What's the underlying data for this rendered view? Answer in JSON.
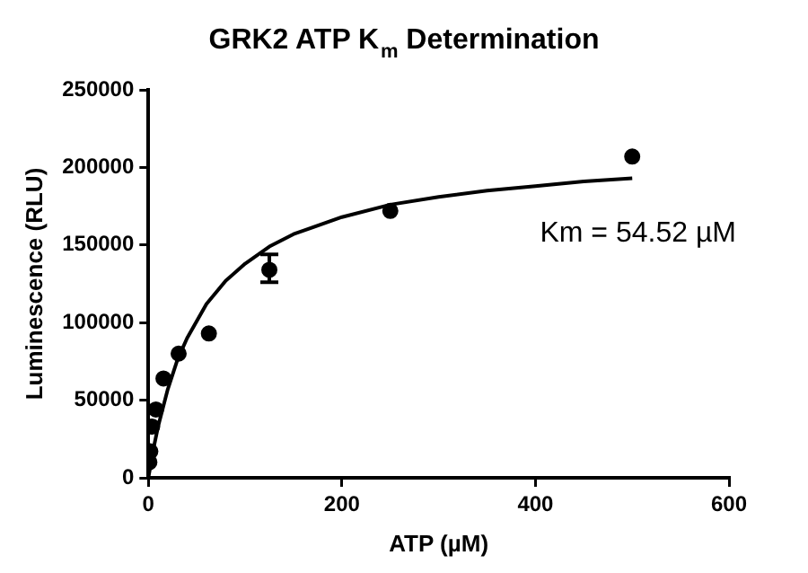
{
  "chart_data": {
    "type": "scatter",
    "title": "GRK2 ATP K$_{m}$ Determination",
    "xlabel": "ATP (µM)",
    "ylabel": "Luminescence (RLU)",
    "xlim": [
      0,
      600
    ],
    "xticks": [
      0,
      200,
      400,
      600
    ],
    "ylim": [
      0,
      250000
    ],
    "yticks": [
      0,
      50000,
      100000,
      150000,
      200000,
      250000
    ],
    "grid": false,
    "legend": false,
    "marker": "circle",
    "annotations": [
      "Km = 54.52 µM"
    ],
    "series": [
      {
        "type": "scatter",
        "color": "#000000",
        "x": [
          1,
          2,
          3.9,
          7.8,
          15.6,
          31.25,
          62.5,
          125,
          250,
          500
        ],
        "values": [
          10000,
          17000,
          33000,
          44000,
          64000,
          80000,
          93000,
          134000,
          172000,
          207000
        ],
        "errors": [
          null,
          null,
          null,
          null,
          null,
          null,
          null,
          [
            126000,
            144000
          ],
          null,
          null
        ]
      },
      {
        "type": "line",
        "color": "#000000",
        "marker": "none",
        "x": [
          0,
          5,
          10,
          20,
          30,
          40,
          60,
          80,
          100,
          125,
          150,
          200,
          250,
          300,
          350,
          400,
          450,
          500
        ],
        "values": [
          0,
          18000,
          33000,
          57000,
          76000,
          90000,
          112000,
          127000,
          138000,
          149000,
          157000,
          168000,
          176000,
          181000,
          185000,
          188000,
          191000,
          193000
        ]
      }
    ]
  }
}
